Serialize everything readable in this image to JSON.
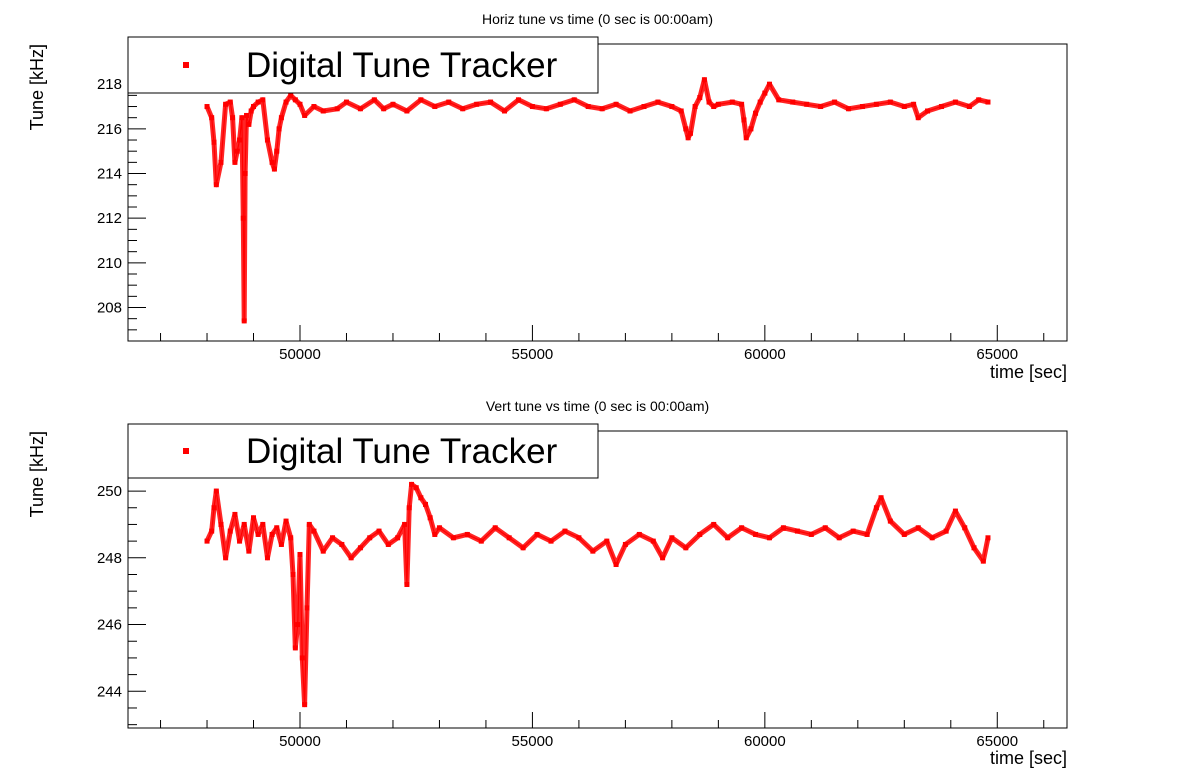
{
  "chart_data": [
    {
      "type": "line",
      "title": "Horiz tune vs time (0 sec is 00:00am)",
      "xlabel": "time [sec]",
      "ylabel": "Tune [kHz]",
      "xlim": [
        46300,
        66500
      ],
      "ylim": [
        206.5,
        219.8
      ],
      "xticks": [
        50000,
        55000,
        60000,
        65000
      ],
      "yticks": [
        208,
        210,
        212,
        214,
        216,
        218
      ],
      "legend": {
        "label": "Digital Tune Tracker",
        "placement": "top-left"
      },
      "series_color": "#ff0000",
      "series": [
        {
          "name": "Digital Tune Tracker",
          "x": [
            48000,
            48100,
            48150,
            48200,
            48300,
            48400,
            48500,
            48550,
            48600,
            48650,
            48700,
            48750,
            48780,
            48800,
            48820,
            48850,
            48900,
            48950,
            49000,
            49100,
            49200,
            49300,
            49400,
            49450,
            49500,
            49550,
            49600,
            49700,
            49800,
            49900,
            50000,
            50100,
            50300,
            50500,
            50800,
            51000,
            51300,
            51600,
            51800,
            52000,
            52300,
            52600,
            52900,
            53200,
            53500,
            53800,
            54100,
            54400,
            54700,
            55000,
            55300,
            55600,
            55900,
            56200,
            56500,
            56800,
            57100,
            57400,
            57700,
            58000,
            58200,
            58300,
            58350,
            58400,
            58500,
            58600,
            58700,
            58800,
            58900,
            59000,
            59300,
            59500,
            59550,
            59600,
            59700,
            59800,
            59900,
            60000,
            60100,
            60300,
            60600,
            60900,
            61200,
            61500,
            61800,
            62100,
            62400,
            62700,
            63000,
            63200,
            63300,
            63500,
            63800,
            64100,
            64400,
            64600,
            64800
          ],
          "y": [
            217.0,
            216.5,
            215.4,
            213.5,
            214.5,
            217.1,
            217.2,
            216.5,
            214.5,
            215.0,
            215.5,
            216.5,
            212.0,
            207.4,
            214.0,
            216.6,
            216.2,
            216.8,
            217.0,
            217.2,
            217.3,
            215.5,
            214.5,
            214.2,
            215.0,
            216.0,
            216.5,
            217.2,
            217.5,
            217.3,
            217.1,
            216.6,
            217.0,
            216.8,
            216.9,
            217.2,
            216.9,
            217.3,
            216.9,
            217.1,
            216.8,
            217.3,
            217.0,
            217.2,
            216.9,
            217.1,
            217.2,
            216.8,
            217.3,
            217.0,
            216.9,
            217.1,
            217.3,
            217.0,
            216.9,
            217.1,
            216.8,
            217.0,
            217.2,
            217.0,
            216.8,
            216.0,
            215.6,
            215.8,
            217.0,
            217.4,
            218.2,
            217.2,
            217.0,
            217.1,
            217.2,
            217.1,
            216.4,
            215.6,
            216.0,
            216.7,
            217.2,
            217.6,
            218.0,
            217.3,
            217.2,
            217.1,
            217.0,
            217.2,
            216.9,
            217.0,
            217.1,
            217.2,
            217.0,
            217.1,
            216.5,
            216.8,
            217.0,
            217.2,
            217.0,
            217.3,
            217.2
          ]
        }
      ]
    },
    {
      "type": "line",
      "title": "Vert tune vs time (0 sec is 00:00am)",
      "xlabel": "time [sec]",
      "ylabel": "Tune [kHz]",
      "xlim": [
        46300,
        66500
      ],
      "ylim": [
        242.9,
        251.8
      ],
      "xticks": [
        50000,
        55000,
        60000,
        65000
      ],
      "yticks": [
        244,
        246,
        248,
        250
      ],
      "legend": {
        "label": "Digital Tune Tracker",
        "placement": "top-left"
      },
      "series_color": "#ff0000",
      "series": [
        {
          "name": "Digital Tune Tracker",
          "x": [
            48000,
            48100,
            48150,
            48200,
            48300,
            48400,
            48500,
            48600,
            48700,
            48800,
            48900,
            49000,
            49100,
            49200,
            49300,
            49400,
            49500,
            49600,
            49700,
            49800,
            49850,
            49900,
            49950,
            50000,
            50050,
            50100,
            50150,
            50200,
            50300,
            50500,
            50700,
            50900,
            51100,
            51300,
            51500,
            51700,
            51900,
            52100,
            52250,
            52300,
            52350,
            52400,
            52500,
            52600,
            52700,
            52800,
            52900,
            53000,
            53300,
            53600,
            53900,
            54200,
            54500,
            54800,
            55100,
            55400,
            55700,
            56000,
            56300,
            56600,
            56800,
            57000,
            57300,
            57600,
            57800,
            58000,
            58300,
            58600,
            58900,
            59200,
            59500,
            59800,
            60100,
            60400,
            60700,
            61000,
            61300,
            61600,
            61900,
            62200,
            62400,
            62500,
            62700,
            63000,
            63300,
            63600,
            63900,
            64100,
            64300,
            64500,
            64700,
            64800
          ],
          "y": [
            248.5,
            248.8,
            249.5,
            250.0,
            249.0,
            248.0,
            248.8,
            249.3,
            248.5,
            249.0,
            248.2,
            249.2,
            248.7,
            249.0,
            248.0,
            248.7,
            248.9,
            248.4,
            249.1,
            248.6,
            247.5,
            245.3,
            246.0,
            248.1,
            245.0,
            243.6,
            246.5,
            249.0,
            248.8,
            248.2,
            248.6,
            248.4,
            248.0,
            248.3,
            248.6,
            248.8,
            248.4,
            248.6,
            249.0,
            247.2,
            249.5,
            250.2,
            250.1,
            249.8,
            249.6,
            249.2,
            248.7,
            248.9,
            248.6,
            248.7,
            248.5,
            248.9,
            248.6,
            248.3,
            248.7,
            248.5,
            248.8,
            248.6,
            248.2,
            248.5,
            247.8,
            248.4,
            248.7,
            248.5,
            248.0,
            248.6,
            248.3,
            248.7,
            249.0,
            248.6,
            248.9,
            248.7,
            248.6,
            248.9,
            248.8,
            248.7,
            248.9,
            248.6,
            248.8,
            248.7,
            249.5,
            249.8,
            249.1,
            248.7,
            248.9,
            248.6,
            248.8,
            249.4,
            248.9,
            248.3,
            247.9,
            248.6
          ]
        }
      ]
    }
  ]
}
